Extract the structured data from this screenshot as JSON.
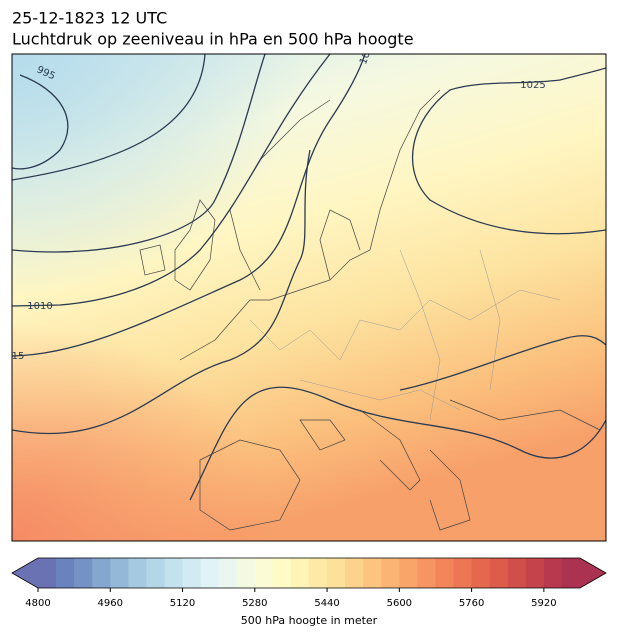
{
  "header": {
    "title": "25-12-1823 12 UTC",
    "subtitle": "Luchtdruk op zeeniveau in hPa en 500 hPa hoogte"
  },
  "map": {
    "contour_labels": [
      "995",
      "1025",
      "1010",
      "15",
      "10"
    ]
  },
  "colorbar": {
    "label": "500 hPa hoogte in meter",
    "range": [
      4800,
      6000
    ],
    "ticks": [
      4800,
      4960,
      5120,
      5280,
      5440,
      5600,
      5760,
      5920
    ],
    "colors": [
      "#6a72b3",
      "#6a82bd",
      "#7592c5",
      "#84a7cf",
      "#93b8d8",
      "#a5c9e0",
      "#b4d7e8",
      "#c3e2ee",
      "#d2ebf2",
      "#e1f3f6",
      "#ecf6f0",
      "#f4f9e2",
      "#fbfcd5",
      "#fffbc6",
      "#fff3b5",
      "#feeaa6",
      "#fde09a",
      "#fdd28c",
      "#fcc47f",
      "#fbb473",
      "#f9a56a",
      "#f69562",
      "#f2855a",
      "#ed7654",
      "#e5684e",
      "#dc5b4b",
      "#d14f4a",
      "#c5444b",
      "#b8394d",
      "#ab3250"
    ]
  }
}
